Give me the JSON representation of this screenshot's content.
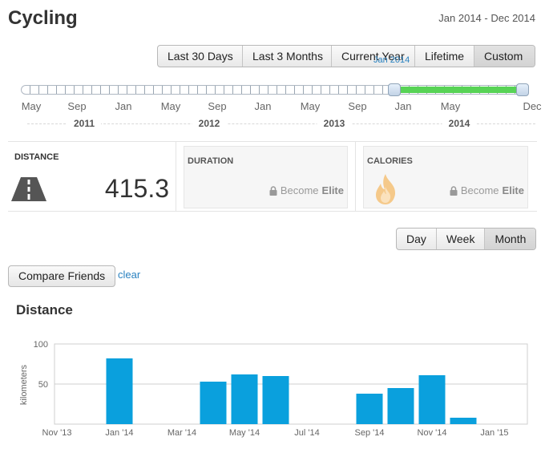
{
  "page": {
    "title": "Cycling",
    "date_range": "Jan 2014 - Dec 2014"
  },
  "range_tabs": [
    "Last 30 Days",
    "Last 3 Months",
    "Current Year",
    "Lifetime",
    "Custom"
  ],
  "slider": {
    "tooltip": "Jan 2014",
    "month_labels": [
      "May",
      "Sep",
      "Jan",
      "May",
      "Sep",
      "Jan",
      "May",
      "Sep",
      "Jan",
      "May",
      "Dec"
    ],
    "year_labels": [
      "2011",
      "2012",
      "2013",
      "2014"
    ]
  },
  "stats": {
    "distance": {
      "label": "DISTANCE",
      "value": "415.3",
      "icon": "road-icon"
    },
    "duration": {
      "label": "DURATION",
      "locked_prefix": "Become",
      "locked_emphasis": "Elite",
      "icon": "lock-icon"
    },
    "calories": {
      "label": "CALORIES",
      "locked_prefix": "Become",
      "locked_emphasis": "Elite",
      "icon": "flame-icon"
    }
  },
  "period_tabs": [
    "Day",
    "Week",
    "Month"
  ],
  "compare": {
    "button": "Compare Friends",
    "clear": "clear"
  },
  "colors": {
    "bar": "#0aa0dd",
    "slider_fill": "#58d356",
    "link": "#2a82c0"
  },
  "chart_data": {
    "type": "bar",
    "title": "Distance",
    "ylabel": "kilometers",
    "xlabel": "",
    "ylim": [
      0,
      100
    ],
    "yticks": [
      50,
      100
    ],
    "x_tick_labels": [
      "Nov '13",
      "Jan '14",
      "Mar '14",
      "May '14",
      "Jul '14",
      "Sep '14",
      "Nov '14",
      "Jan '15"
    ],
    "grid": true,
    "categories": [
      "Jan '14",
      "Feb '14",
      "Mar '14",
      "Apr '14",
      "May '14",
      "Jun '14",
      "Jul '14",
      "Aug '14",
      "Sep '14",
      "Oct '14",
      "Nov '14",
      "Dec '14"
    ],
    "values": [
      82,
      0,
      0,
      53,
      62,
      60,
      0,
      0,
      38,
      45,
      61,
      8
    ]
  }
}
